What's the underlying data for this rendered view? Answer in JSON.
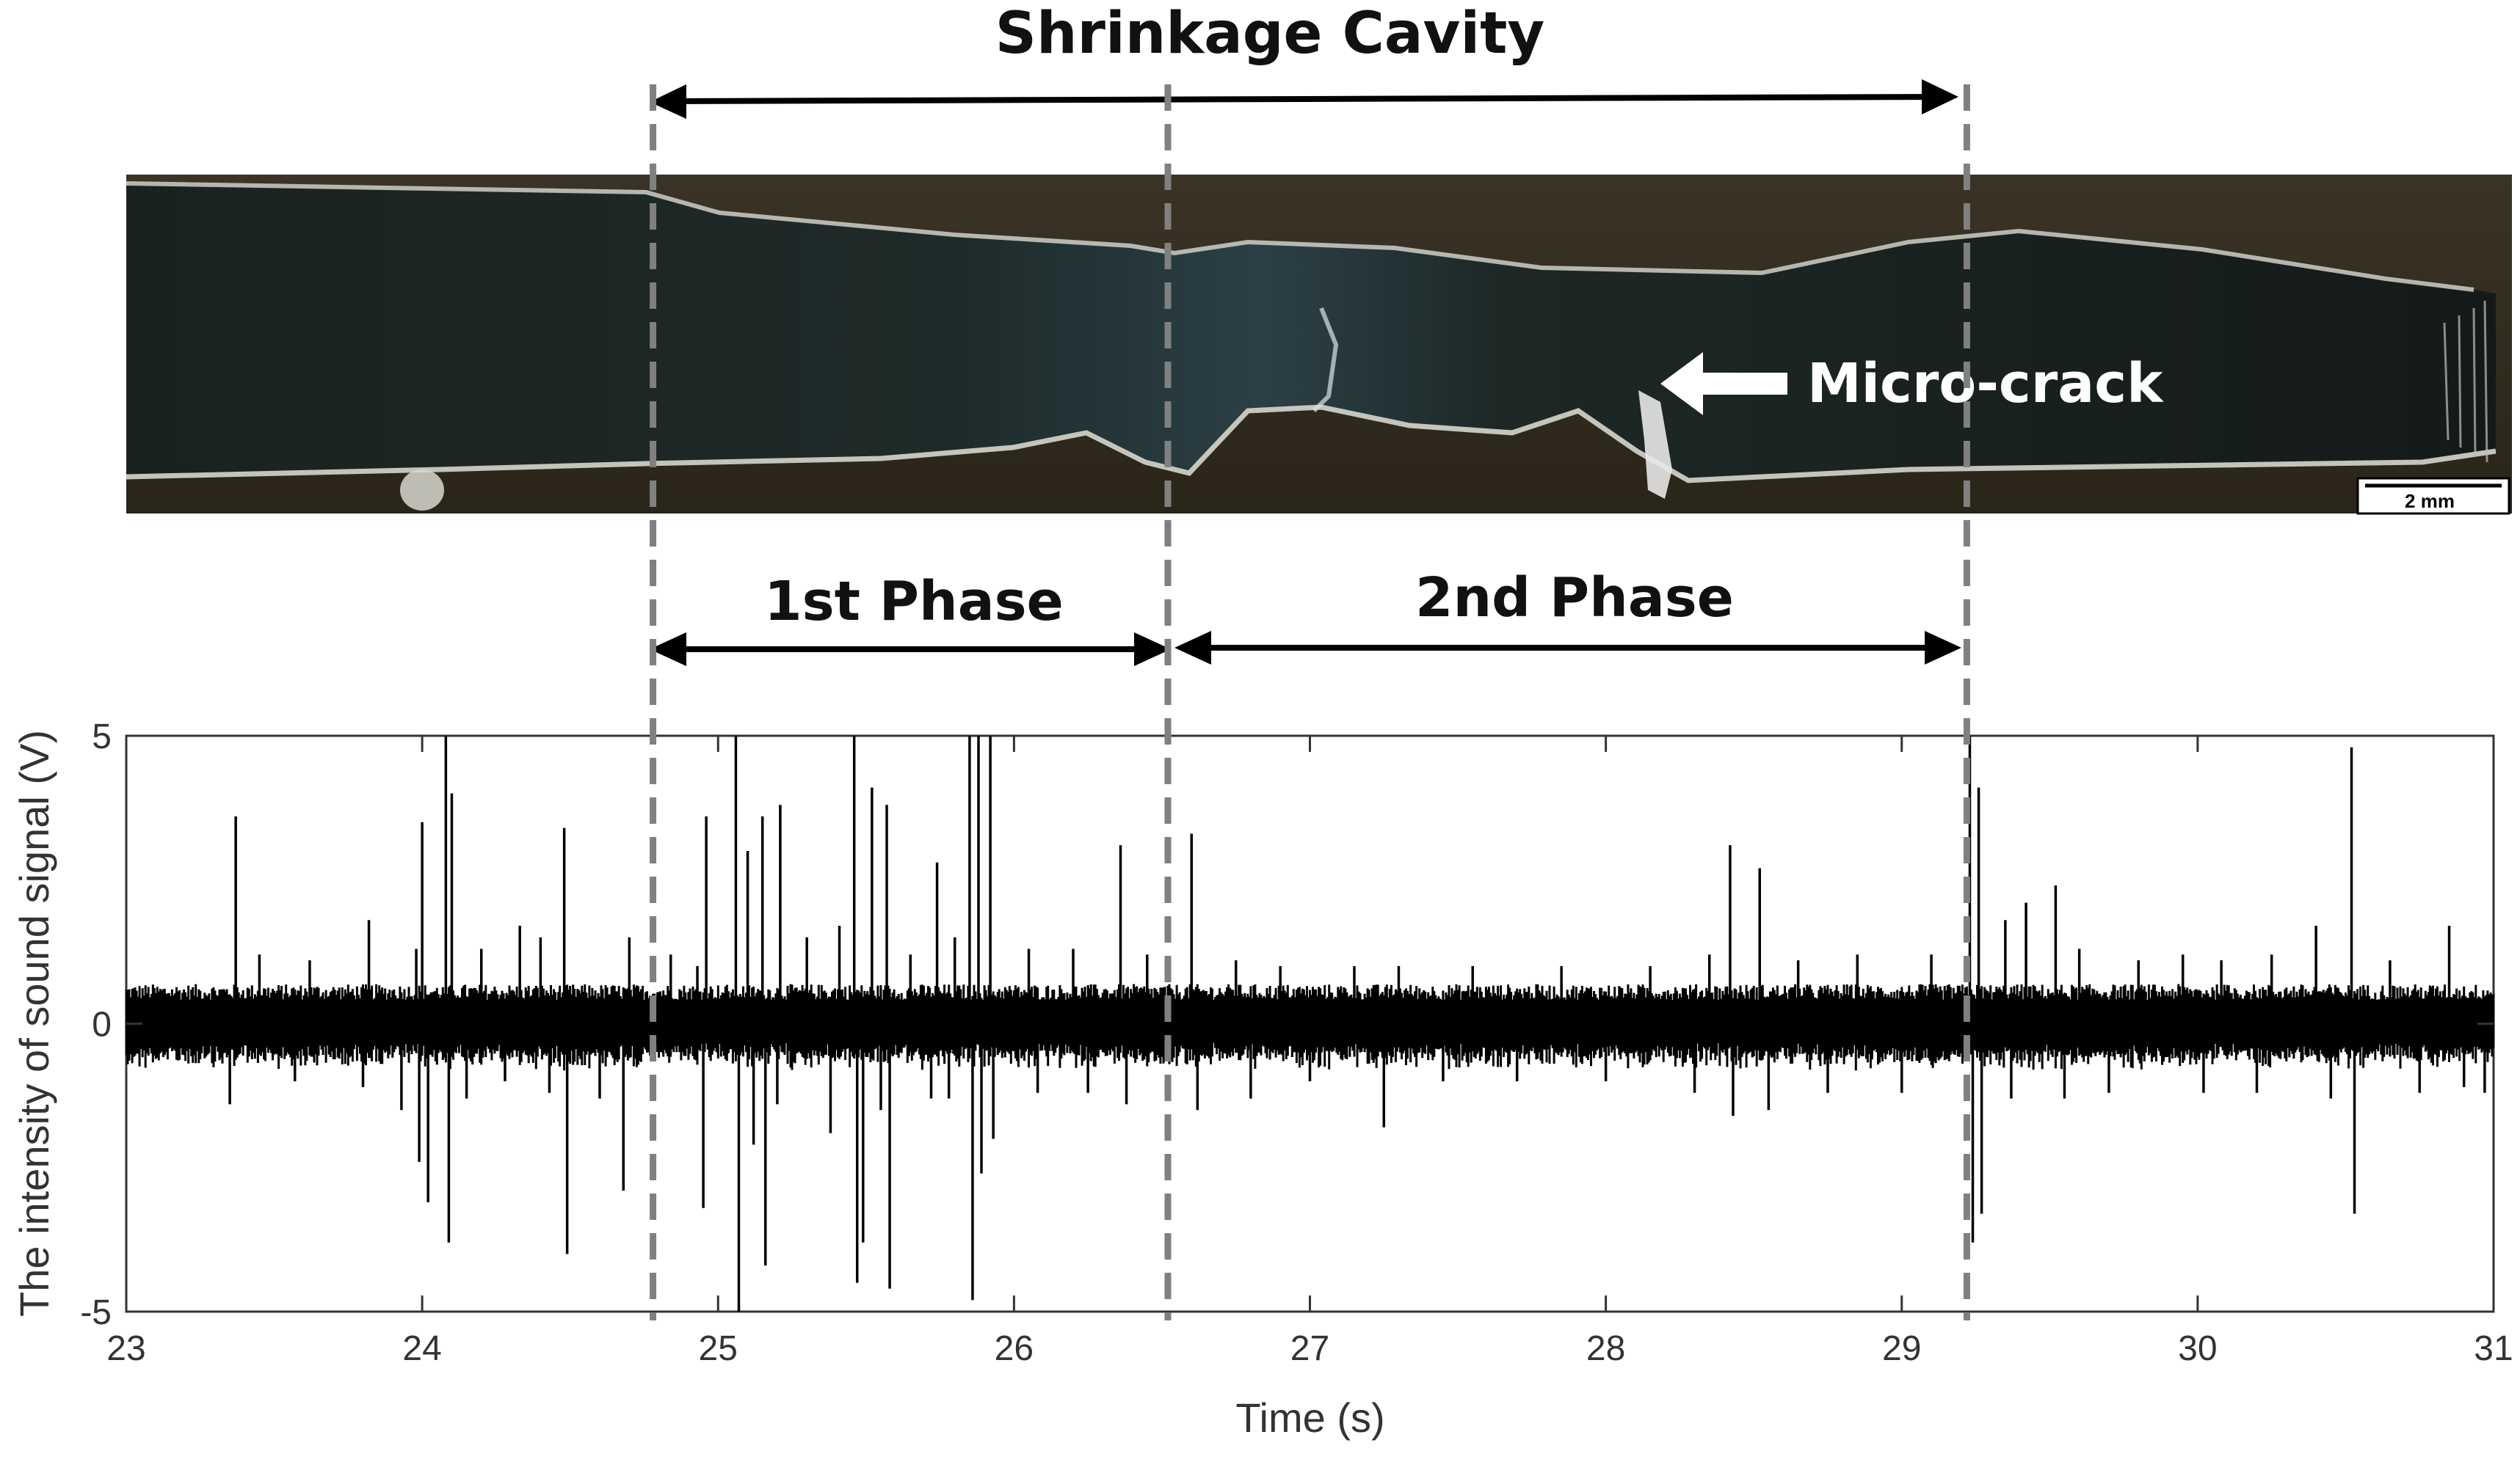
{
  "annotations": {
    "cavity_label": "Shrinkage Cavity",
    "microcrack_label": "Micro-crack",
    "phase1_label": "1st Phase",
    "phase2_label": "2nd Phase",
    "scale_bar_label": "2 mm"
  },
  "colors": {
    "signal": "#000000",
    "dashed_marker": "#808080",
    "arrow": "#000000",
    "specimen_dark": "#1b2422",
    "crack_highlight": "#e8e8e8"
  },
  "chart_data": {
    "type": "line",
    "title": "",
    "xlabel": "Time (s)",
    "ylabel": "The intensity of sound signal (V)",
    "xlim": [
      23,
      31
    ],
    "ylim": [
      -5,
      5
    ],
    "xticks": [
      23,
      24,
      25,
      26,
      27,
      28,
      29,
      30,
      31
    ],
    "yticks": [
      -5,
      0,
      5
    ],
    "grid": false,
    "baseline_amplitude_V": 0.55,
    "phase_markers_s": [
      24.78,
      26.52,
      29.22
    ],
    "spikes": [
      {
        "x": 23.37,
        "y": 3.6
      },
      {
        "x": 23.35,
        "y": -1.4
      },
      {
        "x": 23.45,
        "y": 1.2
      },
      {
        "x": 23.57,
        "y": -1.0
      },
      {
        "x": 23.62,
        "y": 1.1
      },
      {
        "x": 23.8,
        "y": -1.1
      },
      {
        "x": 23.82,
        "y": 1.8
      },
      {
        "x": 23.93,
        "y": -1.5
      },
      {
        "x": 23.98,
        "y": 1.3
      },
      {
        "x": 23.99,
        "y": -2.4
      },
      {
        "x": 24.0,
        "y": 3.5
      },
      {
        "x": 24.02,
        "y": -3.1
      },
      {
        "x": 24.08,
        "y": 5.0
      },
      {
        "x": 24.09,
        "y": -3.8
      },
      {
        "x": 24.1,
        "y": 4.0
      },
      {
        "x": 24.15,
        "y": -1.3
      },
      {
        "x": 24.2,
        "y": 1.3
      },
      {
        "x": 24.28,
        "y": -1.0
      },
      {
        "x": 24.33,
        "y": 1.7
      },
      {
        "x": 24.4,
        "y": 1.5
      },
      {
        "x": 24.43,
        "y": -1.2
      },
      {
        "x": 24.48,
        "y": 3.4
      },
      {
        "x": 24.49,
        "y": -4.0
      },
      {
        "x": 24.6,
        "y": -1.3
      },
      {
        "x": 24.68,
        "y": -2.9
      },
      {
        "x": 24.7,
        "y": 1.5
      },
      {
        "x": 24.84,
        "y": 1.2
      },
      {
        "x": 24.93,
        "y": 1.0
      },
      {
        "x": 24.95,
        "y": -3.2
      },
      {
        "x": 24.96,
        "y": 3.6
      },
      {
        "x": 25.06,
        "y": 5.0
      },
      {
        "x": 25.07,
        "y": -5.0
      },
      {
        "x": 25.1,
        "y": 3.0
      },
      {
        "x": 25.12,
        "y": -2.1
      },
      {
        "x": 25.15,
        "y": 3.6
      },
      {
        "x": 25.16,
        "y": -4.2
      },
      {
        "x": 25.2,
        "y": -1.4
      },
      {
        "x": 25.21,
        "y": 3.8
      },
      {
        "x": 25.3,
        "y": 1.5
      },
      {
        "x": 25.38,
        "y": -1.9
      },
      {
        "x": 25.41,
        "y": 1.7
      },
      {
        "x": 25.46,
        "y": 5.0
      },
      {
        "x": 25.47,
        "y": -4.5
      },
      {
        "x": 25.49,
        "y": -3.8
      },
      {
        "x": 25.52,
        "y": 4.1
      },
      {
        "x": 25.55,
        "y": -1.5
      },
      {
        "x": 25.57,
        "y": 3.8
      },
      {
        "x": 25.58,
        "y": -4.6
      },
      {
        "x": 25.65,
        "y": 1.2
      },
      {
        "x": 25.72,
        "y": -1.3
      },
      {
        "x": 25.74,
        "y": 2.8
      },
      {
        "x": 25.78,
        "y": -1.3
      },
      {
        "x": 25.8,
        "y": 1.5
      },
      {
        "x": 25.85,
        "y": 5.0
      },
      {
        "x": 25.86,
        "y": -4.8
      },
      {
        "x": 25.88,
        "y": 5.0
      },
      {
        "x": 25.89,
        "y": -2.6
      },
      {
        "x": 25.92,
        "y": 5.0
      },
      {
        "x": 25.93,
        "y": -2.0
      },
      {
        "x": 26.05,
        "y": 1.3
      },
      {
        "x": 26.08,
        "y": -1.2
      },
      {
        "x": 26.2,
        "y": 1.3
      },
      {
        "x": 26.25,
        "y": -1.2
      },
      {
        "x": 26.36,
        "y": 3.1
      },
      {
        "x": 26.38,
        "y": -1.4
      },
      {
        "x": 26.45,
        "y": 1.2
      },
      {
        "x": 26.6,
        "y": 3.3
      },
      {
        "x": 26.62,
        "y": -1.5
      },
      {
        "x": 26.75,
        "y": 1.1
      },
      {
        "x": 26.8,
        "y": -1.3
      },
      {
        "x": 26.9,
        "y": 1.0
      },
      {
        "x": 27.0,
        "y": -1.0
      },
      {
        "x": 27.15,
        "y": 1.0
      },
      {
        "x": 27.25,
        "y": -1.8
      },
      {
        "x": 27.3,
        "y": 1.0
      },
      {
        "x": 27.45,
        "y": -1.0
      },
      {
        "x": 27.55,
        "y": 1.0
      },
      {
        "x": 27.7,
        "y": -1.0
      },
      {
        "x": 27.85,
        "y": 1.0
      },
      {
        "x": 28.0,
        "y": -1.0
      },
      {
        "x": 28.15,
        "y": 1.0
      },
      {
        "x": 28.3,
        "y": -1.2
      },
      {
        "x": 28.35,
        "y": 1.2
      },
      {
        "x": 28.42,
        "y": 3.1
      },
      {
        "x": 28.43,
        "y": -1.6
      },
      {
        "x": 28.52,
        "y": 2.7
      },
      {
        "x": 28.55,
        "y": -1.5
      },
      {
        "x": 28.65,
        "y": 1.1
      },
      {
        "x": 28.75,
        "y": -1.2
      },
      {
        "x": 28.85,
        "y": 1.2
      },
      {
        "x": 29.0,
        "y": -1.2
      },
      {
        "x": 29.1,
        "y": 1.2
      },
      {
        "x": 29.23,
        "y": 5.0
      },
      {
        "x": 29.24,
        "y": -3.8
      },
      {
        "x": 29.26,
        "y": 4.1
      },
      {
        "x": 29.27,
        "y": -3.3
      },
      {
        "x": 29.35,
        "y": 1.8
      },
      {
        "x": 29.37,
        "y": -1.3
      },
      {
        "x": 29.42,
        "y": 2.1
      },
      {
        "x": 29.52,
        "y": 2.4
      },
      {
        "x": 29.55,
        "y": -1.3
      },
      {
        "x": 29.6,
        "y": 1.3
      },
      {
        "x": 29.7,
        "y": -1.2
      },
      {
        "x": 29.8,
        "y": 1.1
      },
      {
        "x": 29.95,
        "y": 1.2
      },
      {
        "x": 30.02,
        "y": -1.2
      },
      {
        "x": 30.08,
        "y": 1.1
      },
      {
        "x": 30.2,
        "y": -1.2
      },
      {
        "x": 30.25,
        "y": 1.2
      },
      {
        "x": 30.4,
        "y": 1.7
      },
      {
        "x": 30.45,
        "y": -1.3
      },
      {
        "x": 30.52,
        "y": 4.8
      },
      {
        "x": 30.53,
        "y": -3.3
      },
      {
        "x": 30.65,
        "y": 1.1
      },
      {
        "x": 30.75,
        "y": -1.2
      },
      {
        "x": 30.85,
        "y": 1.7
      },
      {
        "x": 30.9,
        "y": -1.1
      },
      {
        "x": 30.97,
        "y": -1.2
      }
    ]
  }
}
